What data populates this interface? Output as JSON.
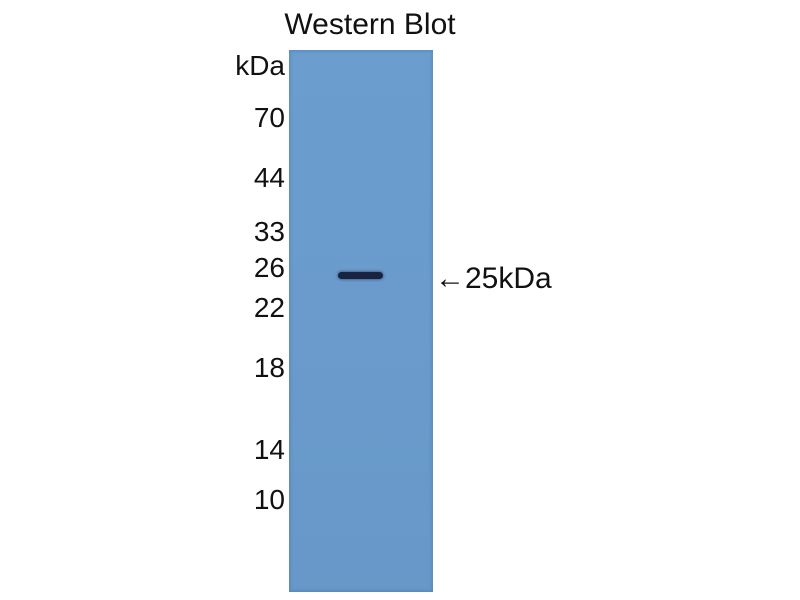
{
  "title": "Western Blot",
  "unit_label": "kDa",
  "markers": [
    "70",
    "44",
    "33",
    "26",
    "22",
    "18",
    "14",
    "10"
  ],
  "band_annotation": "←25kDa",
  "colors": {
    "membrane": "#6a9bcc",
    "band": "#17233f"
  }
}
